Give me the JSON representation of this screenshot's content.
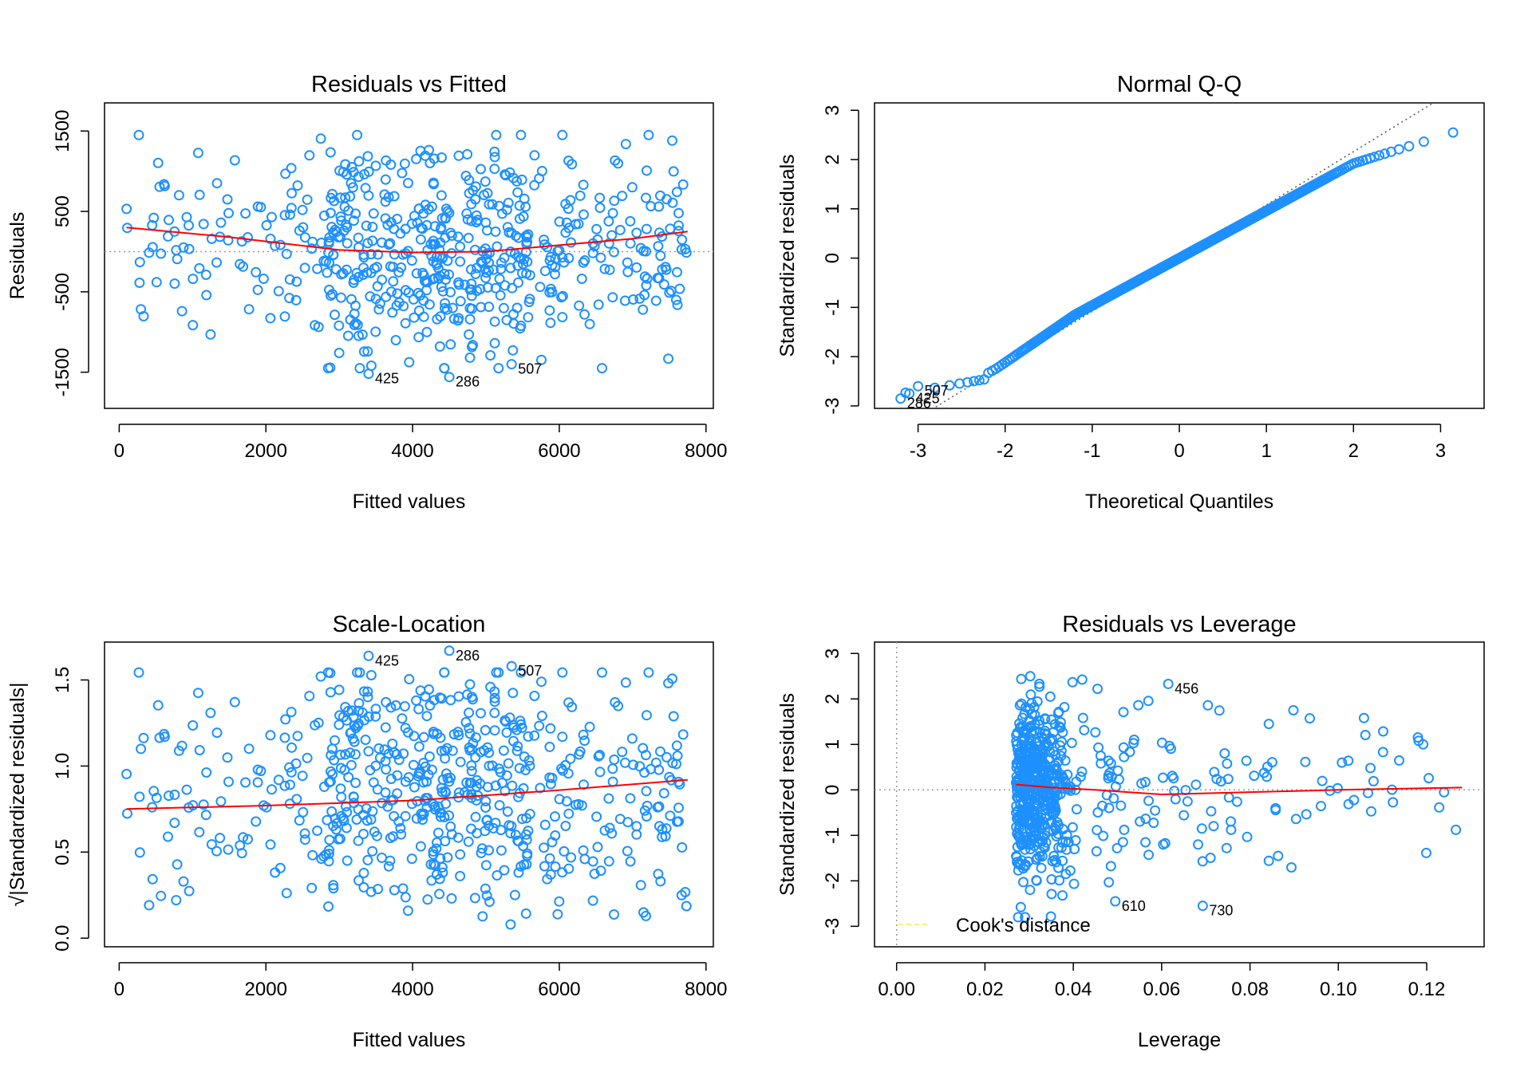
{
  "colors": {
    "points": "#1E90FF",
    "smooth": "#FF0000",
    "reference": "#999999",
    "background": "#FFFFFF",
    "legend_line": "#F0F080"
  },
  "chart_data": [
    {
      "type": "scatter",
      "title": "Residuals vs Fitted",
      "xlabel": "Fitted values",
      "ylabel": "Residuals",
      "xlim": [
        -200,
        8100
      ],
      "ylim": [
        -1950,
        1850
      ],
      "xticks": [
        0,
        2000,
        4000,
        6000,
        8000
      ],
      "yticks": [
        -1500,
        -500,
        500,
        1500
      ],
      "reference_line": 0,
      "point_count": 600,
      "labeled_points": [
        {
          "label": "425",
          "x": 3400,
          "y": -1520
        },
        {
          "label": "286",
          "x": 4500,
          "y": -1560
        },
        {
          "label": "507",
          "x": 5350,
          "y": -1400
        }
      ],
      "smooth": {
        "x": [
          100,
          1500,
          3000,
          4000,
          5000,
          6000,
          7000,
          7750
        ],
        "y": [
          300,
          180,
          20,
          -10,
          0,
          80,
          160,
          250
        ]
      }
    },
    {
      "type": "scatter",
      "title": "Normal Q-Q",
      "xlabel": "Theoretical Quantiles",
      "ylabel": "Standardized residuals",
      "xlim": [
        -3.5,
        3.5
      ],
      "ylim": [
        -3.05,
        3.15
      ],
      "xticks": [
        -3,
        -2,
        -1,
        0,
        1,
        2,
        3
      ],
      "yticks": [
        -3,
        -2,
        -1,
        0,
        1,
        2,
        3
      ],
      "reference_line": {
        "intercept": 0,
        "slope": 1.08
      },
      "point_count": 600,
      "labeled_points": [
        {
          "label": "507",
          "x": -3.0,
          "y": -2.6
        },
        {
          "label": "425",
          "x": -3.1,
          "y": -2.75
        },
        {
          "label": "286",
          "x": -3.2,
          "y": -2.85
        }
      ]
    },
    {
      "type": "scatter",
      "title": "Scale-Location",
      "xlabel": "Fitted values",
      "ylabel": "√|Standardized residuals|",
      "xlim": [
        -200,
        8100
      ],
      "ylim": [
        -0.05,
        1.72
      ],
      "xticks": [
        0,
        2000,
        4000,
        6000,
        8000
      ],
      "yticks": [
        0.0,
        0.5,
        1.0,
        1.5
      ],
      "ytick_labels": [
        "0.0",
        "0.5",
        "1.0",
        "1.5"
      ],
      "point_count": 600,
      "labeled_points": [
        {
          "label": "425",
          "x": 3400,
          "y": 1.64
        },
        {
          "label": "286",
          "x": 4500,
          "y": 1.67
        },
        {
          "label": "507",
          "x": 5350,
          "y": 1.58
        }
      ],
      "smooth": {
        "x": [
          100,
          2000,
          4000,
          6000,
          7750
        ],
        "y": [
          0.75,
          0.77,
          0.8,
          0.86,
          0.92
        ]
      }
    },
    {
      "type": "scatter",
      "title": "Residuals vs Leverage",
      "xlabel": "Leverage",
      "ylabel": "Standardized residuals",
      "xlim": [
        -0.005,
        0.133
      ],
      "ylim": [
        -3.45,
        3.25
      ],
      "xticks": [
        0.0,
        0.02,
        0.04,
        0.06,
        0.08,
        0.1,
        0.12
      ],
      "xtick_labels": [
        "0.00",
        "0.02",
        "0.04",
        "0.06",
        "0.08",
        "0.10",
        "0.12"
      ],
      "yticks": [
        -3,
        -2,
        -1,
        0,
        1,
        2,
        3
      ],
      "reference_line": 0,
      "legend": "Cook's distance",
      "legend_position": "bottom-left",
      "point_count": 600,
      "labeled_points": [
        {
          "label": "456",
          "x": 0.0615,
          "y": 2.33
        },
        {
          "label": "610",
          "x": 0.0495,
          "y": -2.45
        },
        {
          "label": "730",
          "x": 0.0693,
          "y": -2.55
        }
      ],
      "smooth": {
        "x": [
          0.027,
          0.035,
          0.045,
          0.06,
          0.08,
          0.1,
          0.128
        ],
        "y": [
          0.12,
          0.05,
          0.0,
          -0.1,
          -0.05,
          0.0,
          0.05
        ]
      }
    }
  ]
}
